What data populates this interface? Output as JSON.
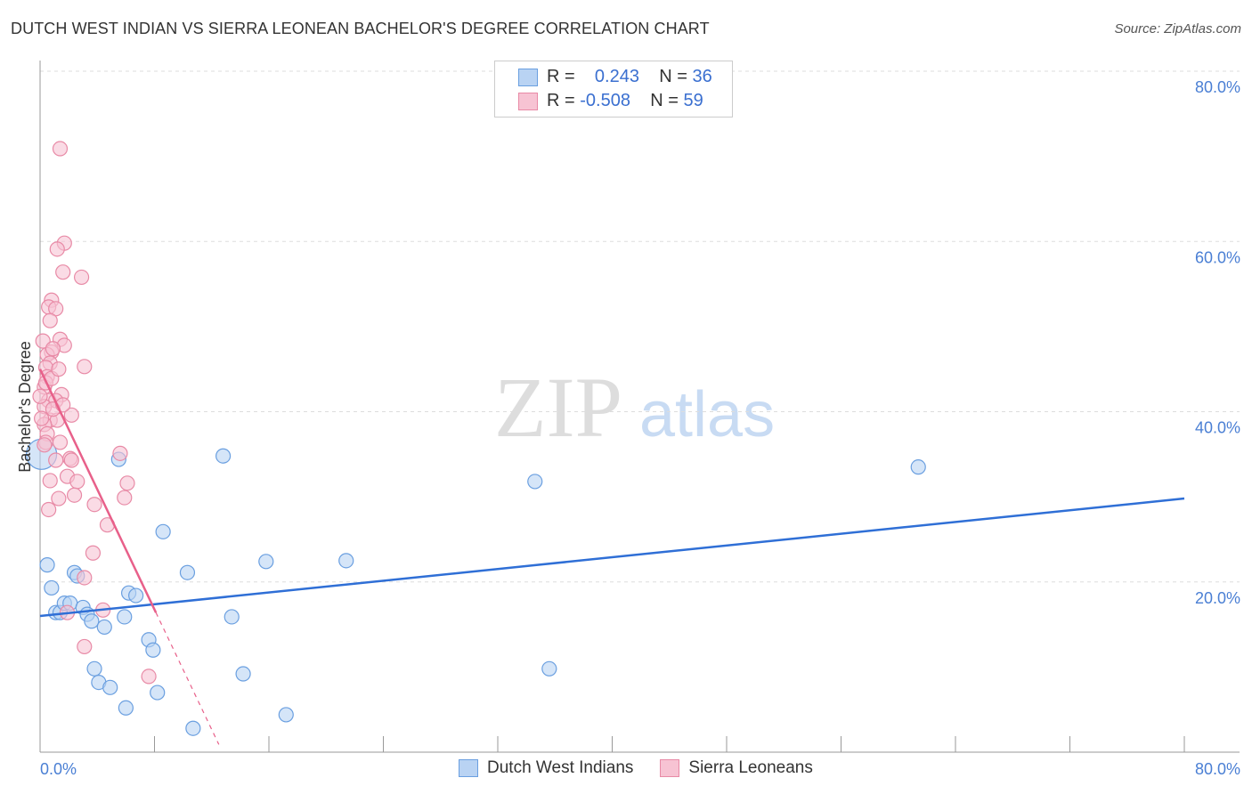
{
  "title": "DUTCH WEST INDIAN VS SIERRA LEONEAN BACHELOR'S DEGREE CORRELATION CHART",
  "source": "Source: ZipAtlas.com",
  "watermark": "ZIPatlas",
  "legend_stats": [
    {
      "r_label": "R =",
      "r": "0.243",
      "n_label": "N =",
      "n": "36"
    },
    {
      "r_label": "R =",
      "r": "-0.508",
      "n_label": "N =",
      "n": "59"
    }
  ],
  "chart_data": {
    "type": "scatter",
    "title": "DUTCH WEST INDIAN VS SIERRA LEONEAN BACHELOR'S DEGREE CORRELATION CHART",
    "xlabel": "",
    "ylabel": "Bachelor's Degree",
    "xlim": [
      0,
      80
    ],
    "ylim": [
      0,
      80
    ],
    "x_tick_labels": [
      "0.0%",
      "80.0%"
    ],
    "y_ticks": [
      20,
      40,
      60,
      80
    ],
    "y_tick_labels": [
      "20.0%",
      "40.0%",
      "60.0%",
      "80.0%"
    ],
    "grid": true,
    "legend": "bottom-center",
    "series": [
      {
        "name": "Dutch West Indians",
        "color": "#6a9fe0",
        "fill": "#b9d3f3",
        "trend": {
          "x": [
            0,
            80
          ],
          "y": [
            16.0,
            29.8
          ],
          "color": "#2f6fd6"
        },
        "points": [
          [
            0.5,
            22.0
          ],
          [
            0.8,
            19.3
          ],
          [
            1.1,
            16.4
          ],
          [
            1.4,
            16.4
          ],
          [
            1.7,
            17.5
          ],
          [
            2.1,
            17.5
          ],
          [
            2.4,
            21.1
          ],
          [
            2.6,
            20.7
          ],
          [
            3.0,
            17.0
          ],
          [
            3.3,
            16.2
          ],
          [
            3.6,
            15.4
          ],
          [
            3.8,
            9.8
          ],
          [
            4.1,
            8.2
          ],
          [
            4.5,
            14.7
          ],
          [
            4.9,
            7.6
          ],
          [
            5.5,
            34.4
          ],
          [
            5.9,
            15.9
          ],
          [
            6.0,
            5.2
          ],
          [
            6.2,
            18.7
          ],
          [
            6.7,
            18.4
          ],
          [
            7.6,
            13.2
          ],
          [
            7.9,
            12.0
          ],
          [
            8.2,
            7.0
          ],
          [
            8.6,
            25.9
          ],
          [
            10.3,
            21.1
          ],
          [
            10.7,
            2.8
          ],
          [
            12.8,
            34.8
          ],
          [
            13.4,
            15.9
          ],
          [
            14.2,
            9.2
          ],
          [
            15.8,
            22.4
          ],
          [
            17.2,
            4.4
          ],
          [
            21.4,
            22.5
          ],
          [
            34.6,
            31.8
          ],
          [
            35.6,
            9.8
          ],
          [
            61.4,
            33.5
          ],
          [
            0.1,
            35.0
          ]
        ]
      },
      {
        "name": "Sierra Leoneans",
        "color": "#e88aa6",
        "fill": "#f7c3d3",
        "trend": {
          "x": [
            0,
            8.1
          ],
          "y": [
            45.0,
            16.4
          ],
          "dashed_to": [
            12.5,
            0.9
          ],
          "color": "#e8608a"
        },
        "points": [
          [
            1.4,
            70.9
          ],
          [
            1.7,
            59.8
          ],
          [
            1.2,
            59.1
          ],
          [
            1.6,
            56.4
          ],
          [
            2.9,
            55.8
          ],
          [
            0.8,
            53.1
          ],
          [
            0.6,
            52.3
          ],
          [
            1.1,
            52.1
          ],
          [
            0.7,
            50.7
          ],
          [
            1.4,
            48.5
          ],
          [
            1.7,
            47.8
          ],
          [
            0.8,
            47.0
          ],
          [
            0.5,
            46.7
          ],
          [
            0.7,
            45.7
          ],
          [
            3.1,
            45.3
          ],
          [
            0.4,
            45.2
          ],
          [
            0.5,
            44.1
          ],
          [
            0.3,
            42.9
          ],
          [
            1.5,
            42.0
          ],
          [
            0.6,
            41.3
          ],
          [
            1.1,
            41.3
          ],
          [
            0.3,
            40.6
          ],
          [
            2.2,
            39.6
          ],
          [
            0.7,
            39.0
          ],
          [
            1.2,
            39.0
          ],
          [
            0.3,
            38.5
          ],
          [
            0.5,
            37.4
          ],
          [
            1.4,
            36.4
          ],
          [
            0.4,
            36.4
          ],
          [
            1.1,
            34.3
          ],
          [
            2.1,
            34.5
          ],
          [
            2.2,
            34.3
          ],
          [
            5.6,
            35.1
          ],
          [
            0.7,
            31.9
          ],
          [
            1.9,
            32.4
          ],
          [
            2.6,
            31.8
          ],
          [
            6.1,
            31.6
          ],
          [
            1.3,
            29.8
          ],
          [
            2.4,
            30.2
          ],
          [
            5.9,
            29.9
          ],
          [
            0.6,
            28.5
          ],
          [
            3.8,
            29.1
          ],
          [
            4.7,
            26.7
          ],
          [
            3.7,
            23.4
          ],
          [
            3.1,
            20.5
          ],
          [
            4.4,
            16.7
          ],
          [
            1.9,
            16.4
          ],
          [
            3.1,
            12.4
          ],
          [
            7.6,
            8.9
          ],
          [
            0.2,
            48.3
          ],
          [
            0.9,
            47.4
          ],
          [
            0.1,
            39.2
          ],
          [
            0.9,
            40.3
          ],
          [
            0.4,
            43.4
          ],
          [
            0.0,
            41.8
          ],
          [
            0.8,
            43.9
          ],
          [
            0.3,
            36.1
          ],
          [
            1.6,
            40.8
          ],
          [
            1.3,
            45.0
          ]
        ]
      }
    ]
  }
}
